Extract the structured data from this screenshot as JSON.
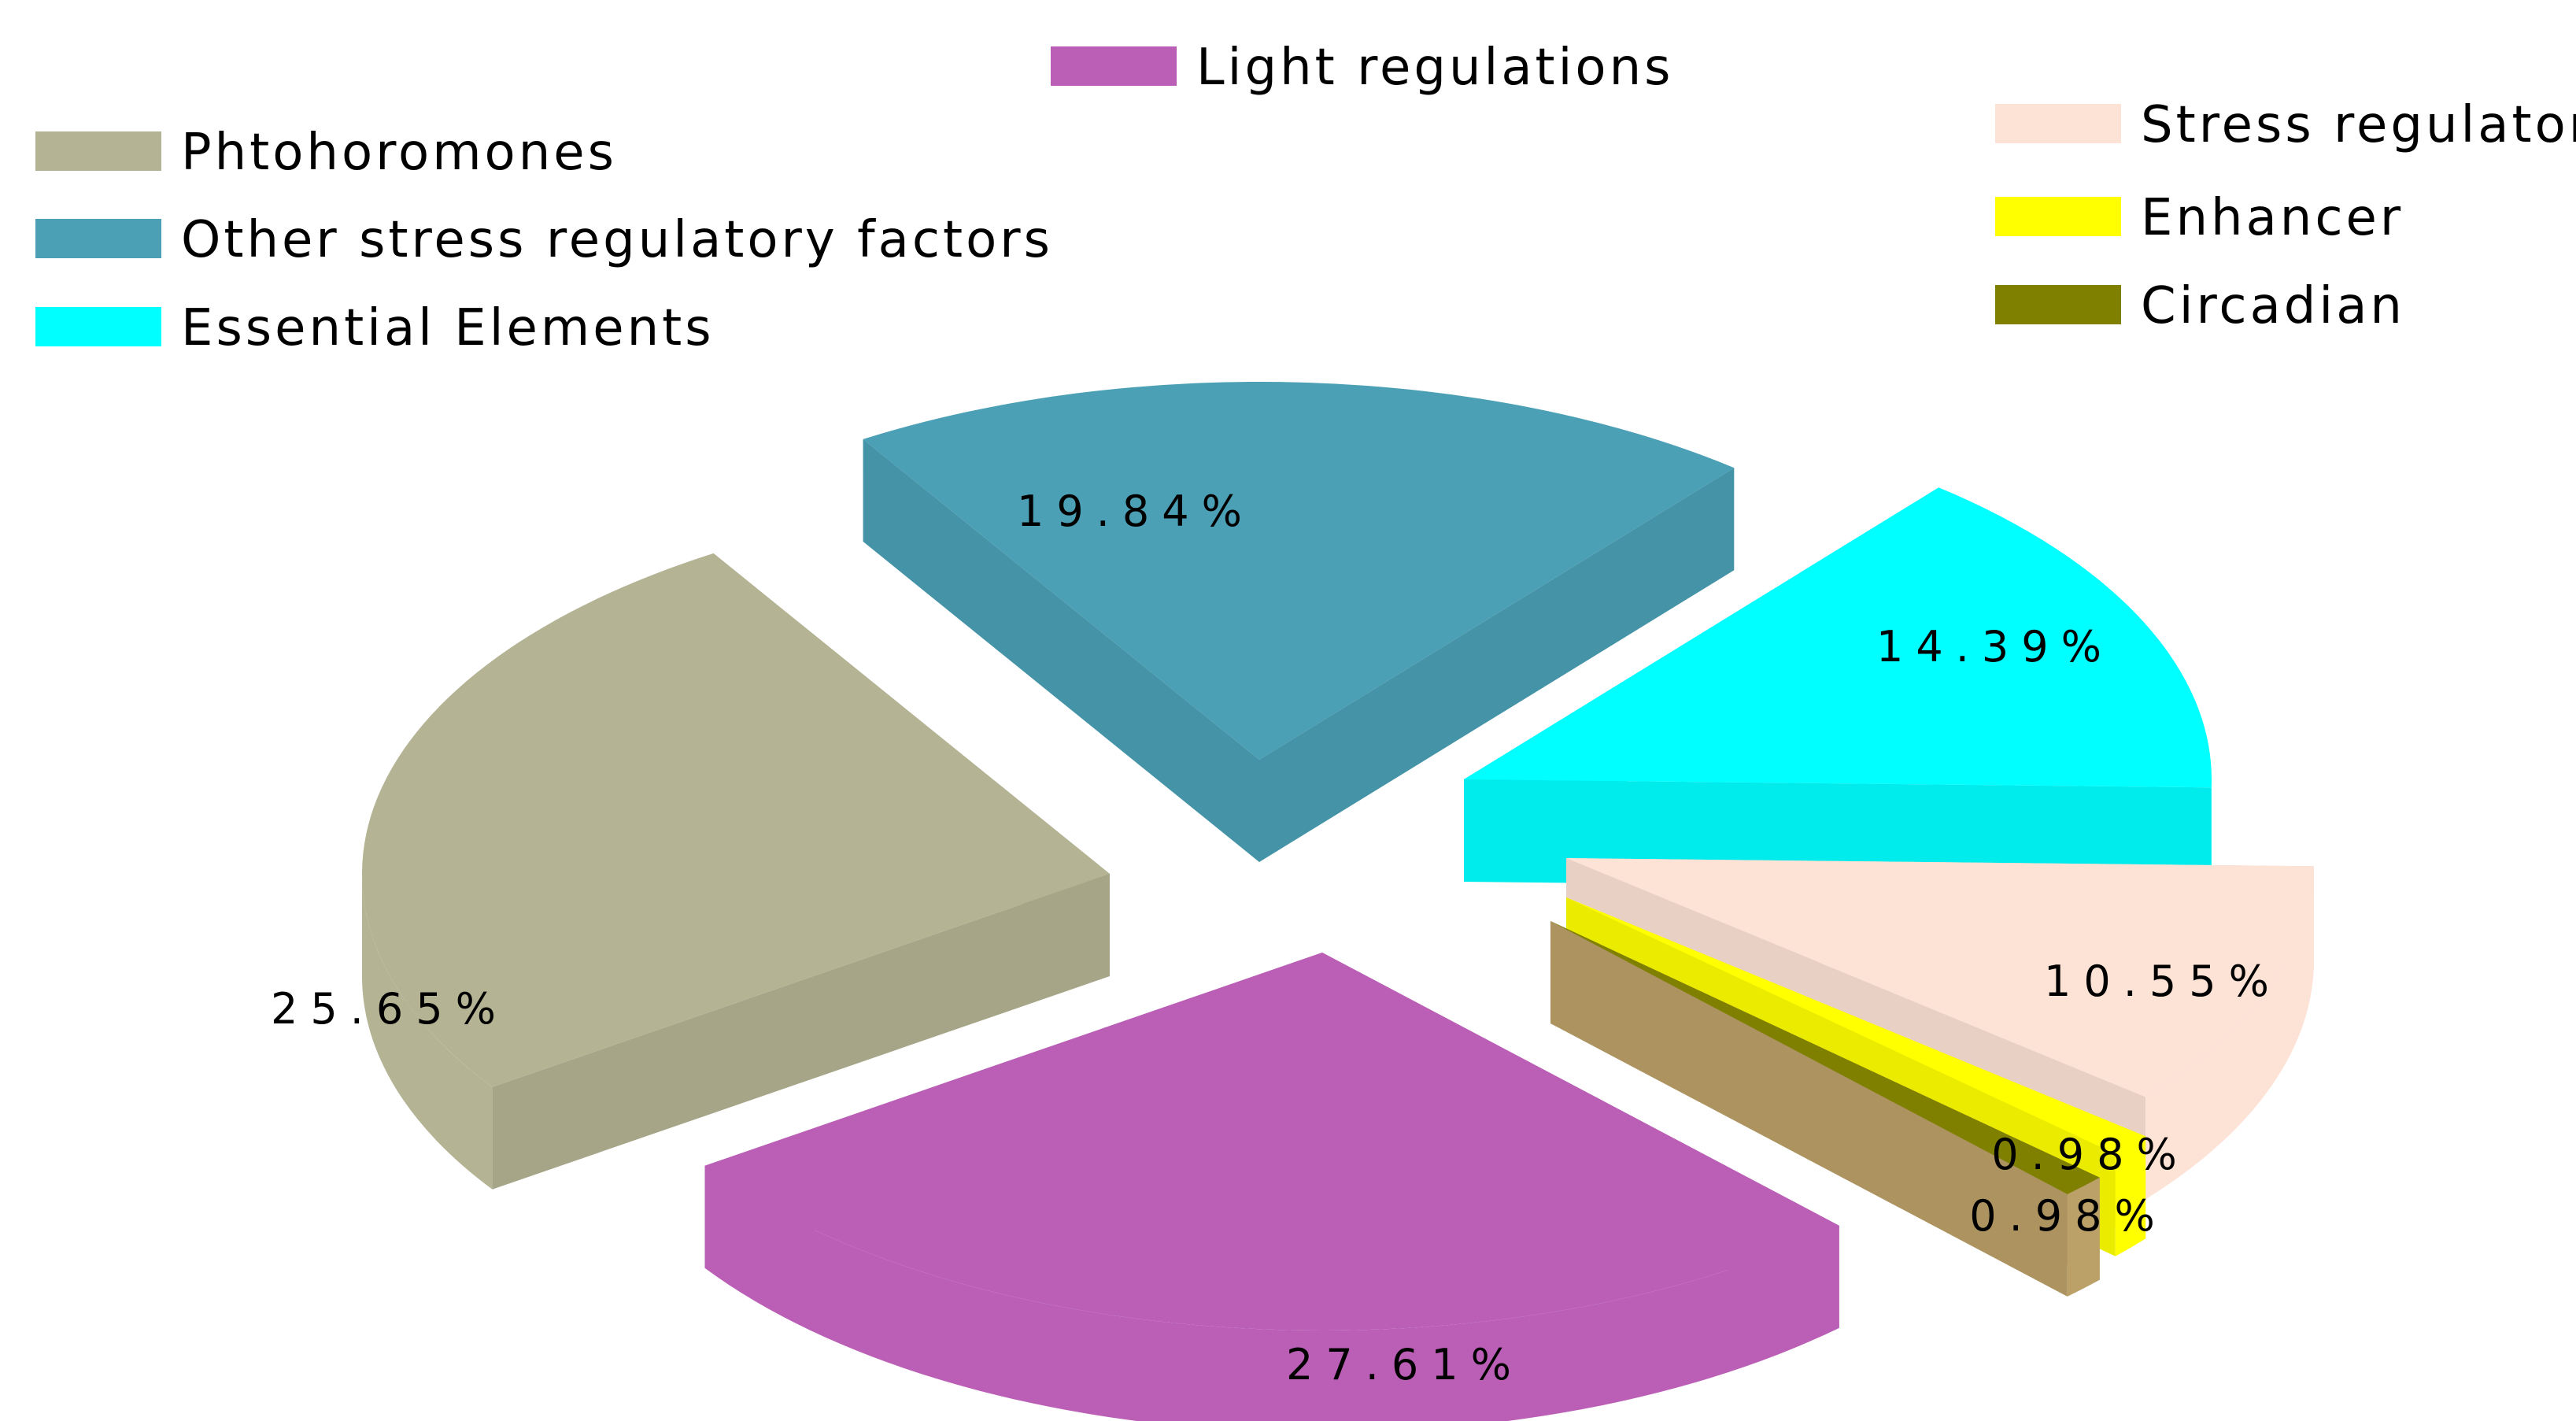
{
  "chart_data": {
    "type": "pie",
    "style": "3d-exploded",
    "legend_placement": "top",
    "slices": [
      {
        "label": "Light regulations",
        "value": 27.61,
        "value_label": "27.61%",
        "color": "#BB5FB6",
        "side_color": "#BB5FB6"
      },
      {
        "label": "Phtohoromones",
        "value": 25.65,
        "value_label": "25.65%",
        "color": "#B4B394",
        "side_color": "#B4B394"
      },
      {
        "label": "Other stress regulatory factors",
        "value": 19.84,
        "value_label": "19.84%",
        "color": "#4BA0B5",
        "side_color": "#4BA0B5"
      },
      {
        "label": "Essential Elements",
        "value": 14.39,
        "value_label": "14.39%",
        "color": "#00FFFF",
        "side_color": "#00FFFF"
      },
      {
        "label": "Stress regulators",
        "value": 10.55,
        "value_label": "10.55%",
        "color": "#FDE2D6",
        "side_color": "#FDE2D6"
      },
      {
        "label": "Enhancer",
        "value": 0.98,
        "value_label": "0.98%",
        "color": "#FFFF00",
        "side_color": "#FFFF00"
      },
      {
        "label": "Circadian",
        "value": 0.98,
        "value_label": "0.98%",
        "color": "#808000",
        "side_color": "#BBA068"
      }
    ]
  }
}
